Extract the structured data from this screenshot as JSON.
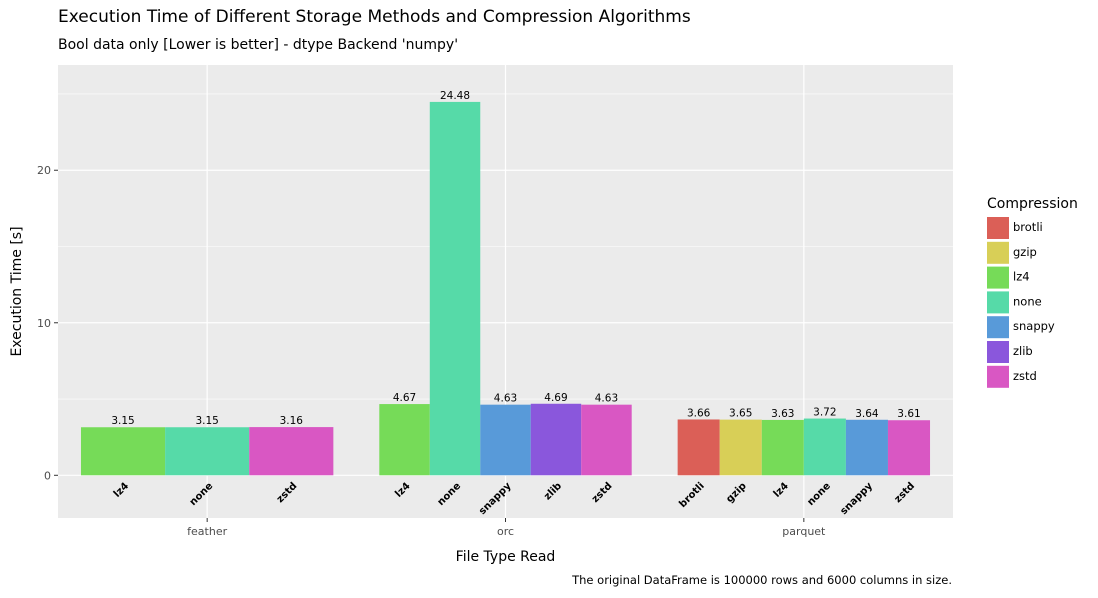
{
  "chart_data": {
    "type": "bar",
    "title": "Execution Time of Different Storage Methods and Compression Algorithms",
    "subtitle": "Bool data only [Lower is better] - dtype Backend 'numpy'",
    "caption": "The original DataFrame is 100000 rows and 6000 columns in size.",
    "xlabel": "File Type Read",
    "ylabel": "Execution Time [s]",
    "ylim": [
      -2.8,
      26.9
    ],
    "yticks": [
      0,
      10,
      20
    ],
    "grid": true,
    "legend_position": "right",
    "legend_title": "Compression",
    "legend": [
      {
        "name": "brotli",
        "color": "#db5f57"
      },
      {
        "name": "gzip",
        "color": "#d8cf57"
      },
      {
        "name": "lz4",
        "color": "#76db58"
      },
      {
        "name": "none",
        "color": "#56daa8"
      },
      {
        "name": "snappy",
        "color": "#589ad9"
      },
      {
        "name": "zlib",
        "color": "#8a57dc"
      },
      {
        "name": "zstd",
        "color": "#d957c3"
      }
    ],
    "groups": [
      {
        "name": "feather",
        "bars": [
          {
            "compression": "lz4",
            "value": 3.15
          },
          {
            "compression": "none",
            "value": 3.15
          },
          {
            "compression": "zstd",
            "value": 3.16
          }
        ]
      },
      {
        "name": "orc",
        "bars": [
          {
            "compression": "lz4",
            "value": 4.67
          },
          {
            "compression": "none",
            "value": 24.48
          },
          {
            "compression": "snappy",
            "value": 4.63
          },
          {
            "compression": "zlib",
            "value": 4.69
          },
          {
            "compression": "zstd",
            "value": 4.63
          }
        ]
      },
      {
        "name": "parquet",
        "bars": [
          {
            "compression": "brotli",
            "value": 3.66
          },
          {
            "compression": "gzip",
            "value": 3.65
          },
          {
            "compression": "lz4",
            "value": 3.63
          },
          {
            "compression": "none",
            "value": 3.72
          },
          {
            "compression": "snappy",
            "value": 3.64
          },
          {
            "compression": "zstd",
            "value": 3.61
          }
        ]
      }
    ]
  }
}
